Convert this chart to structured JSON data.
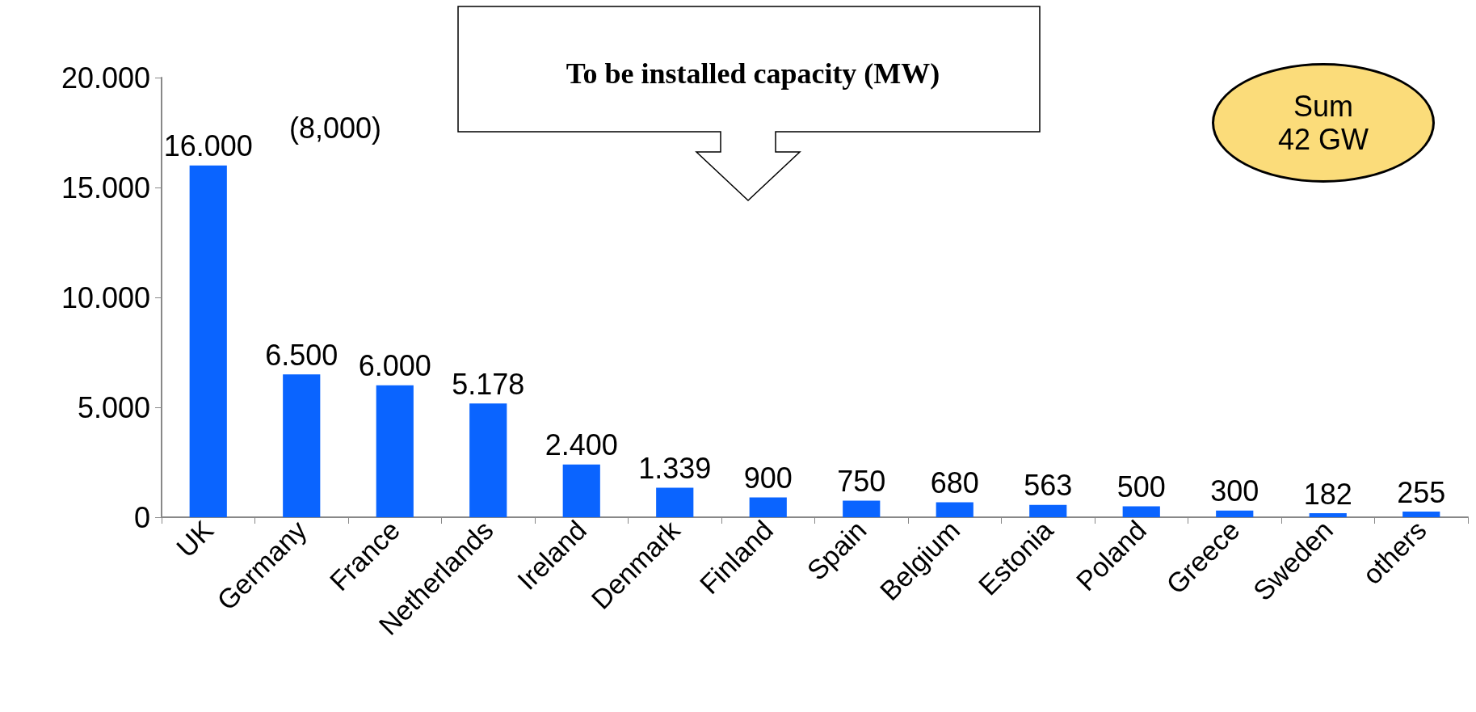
{
  "chart_data": {
    "type": "bar",
    "title": "To be installed capacity (MW)",
    "categories": [
      "UK",
      "Germany",
      "France",
      "Netherlands",
      "Ireland",
      "Denmark",
      "Finland",
      "Spain",
      "Belgium",
      "Estonia",
      "Poland",
      "Greece",
      "Sweden",
      "others"
    ],
    "values": [
      16000,
      6500,
      6000,
      5178,
      2400,
      1339,
      900,
      750,
      680,
      563,
      500,
      300,
      182,
      255
    ],
    "value_labels": [
      "16.000",
      "6.500",
      "6.000",
      "5.178",
      "2.400",
      "1.339",
      "900",
      "750",
      "680",
      "563",
      "500",
      "300",
      "182",
      "255"
    ],
    "color": "#0a64ff",
    "ylim": [
      0,
      20000
    ],
    "yticks": [
      0,
      {
        "value": 5000,
        "label": "5.000"
      },
      {
        "value": 10000,
        "label": "10.000"
      },
      {
        "value": 15000,
        "label": "15.000"
      },
      {
        "value": 20000,
        "label": "20.000"
      }
    ],
    "grid": false,
    "annotations": [
      "(8,000)",
      "Sum\n42 GW"
    ]
  }
}
